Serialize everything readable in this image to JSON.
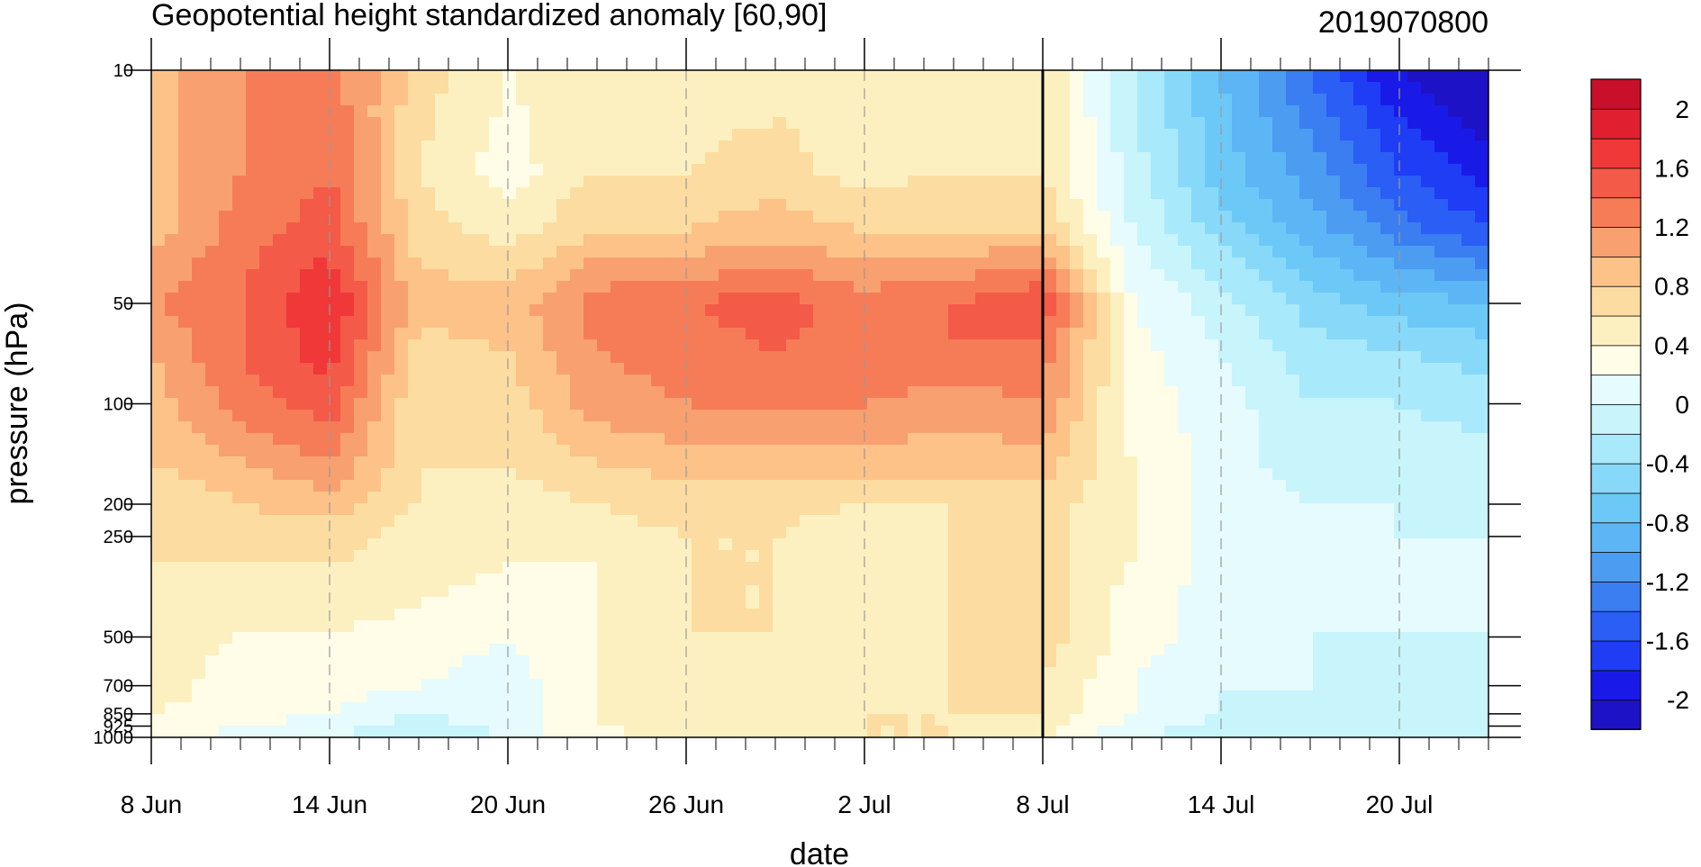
{
  "chart_data": {
    "type": "heatmap",
    "subtype": "filled-contour",
    "title": "Geopotential height standardized anomaly [60,90]",
    "date_label": "2019070800",
    "xlabel": "date",
    "ylabel": "pressure (hPa)",
    "x_range": [
      "2019-06-08",
      "2019-07-23"
    ],
    "y_range": [
      1000,
      10
    ],
    "y_scale": "log",
    "x_ticks": [
      {
        "label": "8 Jun",
        "date": "2019-06-08"
      },
      {
        "label": "14 Jun",
        "date": "2019-06-14"
      },
      {
        "label": "20 Jun",
        "date": "2019-06-20"
      },
      {
        "label": "26 Jun",
        "date": "2019-06-26"
      },
      {
        "label": "2 Jul",
        "date": "2019-07-02"
      },
      {
        "label": "8 Jul",
        "date": "2019-07-08"
      },
      {
        "label": "14 Jul",
        "date": "2019-07-14"
      },
      {
        "label": "20 Jul",
        "date": "2019-07-20"
      }
    ],
    "y_ticks": [
      {
        "label": "10",
        "value": 10
      },
      {
        "label": "50",
        "value": 50
      },
      {
        "label": "100",
        "value": 100
      },
      {
        "label": "200",
        "value": 200
      },
      {
        "label": "250",
        "value": 250
      },
      {
        "label": "500",
        "value": 500
      },
      {
        "label": "700",
        "value": 700
      },
      {
        "label": "850",
        "value": 850
      },
      {
        "label": "925",
        "value": 925
      },
      {
        "label": "1000",
        "value": 1000
      }
    ],
    "current_date_line": "2019-07-08",
    "grid": "vertical dashed lines at labelled dates",
    "colorbar": {
      "placement": "right",
      "levels": [
        -2.2,
        -2.0,
        -1.8,
        -1.6,
        -1.4,
        -1.2,
        -1.0,
        -0.8,
        -0.6,
        -0.4,
        -0.2,
        0,
        0.2,
        0.4,
        0.6,
        0.8,
        1.0,
        1.2,
        1.4,
        1.6,
        1.8,
        2.0,
        2.2
      ],
      "colors": [
        "#1e12c6",
        "#1a1ae8",
        "#1e3df5",
        "#2a5ef5",
        "#3a7ef2",
        "#4c9cf2",
        "#5cb6f5",
        "#6cc9f7",
        "#88d9f9",
        "#a8e9fb",
        "#c8f4fc",
        "#e6fbfd",
        "#fffce8",
        "#fdf0c0",
        "#fcdca0",
        "#fcc288",
        "#f8a070",
        "#f67c58",
        "#f45a48",
        "#f03838",
        "#e02030",
        "#c8102a"
      ],
      "labels": [
        {
          "label": "2",
          "value": 2.0
        },
        {
          "label": "1.6",
          "value": 1.6
        },
        {
          "label": "1.2",
          "value": 1.2
        },
        {
          "label": "0.8",
          "value": 0.8
        },
        {
          "label": "0.4",
          "value": 0.4
        },
        {
          "label": "0",
          "value": 0.0
        },
        {
          "label": "-0.4",
          "value": -0.4
        },
        {
          "label": "-0.8",
          "value": -0.8
        },
        {
          "label": "-1.2",
          "value": -1.2
        },
        {
          "label": "-1.6",
          "value": -1.6
        },
        {
          "label": "-2",
          "value": -2.0
        }
      ]
    },
    "field": {
      "pressure_levels": [
        10,
        20,
        30,
        50,
        70,
        100,
        150,
        200,
        250,
        300,
        400,
        500,
        700,
        850,
        925,
        1000
      ],
      "dates": [
        "2019-06-08",
        "2019-06-11",
        "2019-06-14",
        "2019-06-17",
        "2019-06-20",
        "2019-06-23",
        "2019-06-26",
        "2019-06-29",
        "2019-07-02",
        "2019-07-05",
        "2019-07-08",
        "2019-07-11",
        "2019-07-14",
        "2019-07-17",
        "2019-07-20",
        "2019-07-23"
      ],
      "values": [
        [
          0.9,
          1.2,
          1.3,
          0.7,
          0.4,
          0.6,
          0.5,
          0.5,
          0.5,
          0.5,
          0.6,
          -0.2,
          -0.8,
          -1.4,
          -2.0,
          -2.3
        ],
        [
          0.9,
          1.2,
          1.4,
          0.6,
          0.3,
          0.6,
          0.6,
          0.7,
          0.5,
          0.6,
          0.6,
          -0.1,
          -0.7,
          -1.1,
          -1.6,
          -1.9
        ],
        [
          0.9,
          1.3,
          1.5,
          0.7,
          0.5,
          0.8,
          0.8,
          0.9,
          0.8,
          0.8,
          0.8,
          0.0,
          -0.5,
          -0.9,
          -1.3,
          -1.6
        ],
        [
          1.2,
          1.4,
          1.8,
          0.9,
          0.9,
          1.3,
          1.4,
          1.5,
          1.3,
          1.4,
          1.6,
          0.2,
          -0.1,
          -0.5,
          -0.7,
          -0.8
        ],
        [
          1.0,
          1.4,
          1.7,
          0.7,
          0.8,
          1.2,
          1.3,
          1.4,
          1.3,
          1.4,
          1.3,
          0.3,
          0.0,
          -0.3,
          -0.4,
          -0.5
        ],
        [
          0.9,
          1.3,
          1.5,
          0.6,
          0.7,
          1.1,
          1.2,
          1.2,
          1.2,
          1.1,
          1.2,
          0.3,
          0.1,
          -0.2,
          -0.2,
          -0.3
        ],
        [
          0.8,
          1.0,
          1.2,
          0.6,
          0.6,
          0.8,
          0.9,
          0.9,
          0.9,
          0.9,
          0.9,
          0.4,
          0.1,
          -0.1,
          -0.1,
          -0.1
        ],
        [
          0.6,
          0.8,
          0.9,
          0.6,
          0.5,
          0.6,
          0.7,
          0.7,
          0.6,
          0.6,
          0.7,
          0.4,
          0.1,
          0.0,
          0.0,
          -0.1
        ],
        [
          0.6,
          0.7,
          0.7,
          0.5,
          0.4,
          0.5,
          0.6,
          0.6,
          0.4,
          0.6,
          0.7,
          0.4,
          0.1,
          0.0,
          0.0,
          0.0
        ],
        [
          0.6,
          0.6,
          0.6,
          0.5,
          0.4,
          0.4,
          0.6,
          0.6,
          0.4,
          0.6,
          0.7,
          0.4,
          0.1,
          0.0,
          0.0,
          0.0
        ],
        [
          0.5,
          0.5,
          0.5,
          0.4,
          0.3,
          0.4,
          0.6,
          0.6,
          0.4,
          0.6,
          0.7,
          0.3,
          0.1,
          0.0,
          0.0,
          0.0
        ],
        [
          0.5,
          0.4,
          0.4,
          0.3,
          0.2,
          0.4,
          0.6,
          0.6,
          0.4,
          0.6,
          0.7,
          0.3,
          0.1,
          0.0,
          0.0,
          0.0
        ],
        [
          0.5,
          0.3,
          0.3,
          0.2,
          0.1,
          0.4,
          0.5,
          0.5,
          0.5,
          0.6,
          0.6,
          0.2,
          0.0,
          0.0,
          -0.1,
          -0.1
        ],
        [
          0.4,
          0.3,
          0.2,
          0.0,
          0.1,
          0.4,
          0.5,
          0.4,
          0.6,
          0.6,
          0.6,
          0.2,
          0.0,
          -0.1,
          -0.1,
          -0.1
        ],
        [
          0.4,
          0.2,
          0.1,
          -0.1,
          0.1,
          0.4,
          0.4,
          0.4,
          0.6,
          0.6,
          0.5,
          0.1,
          -0.1,
          -0.1,
          -0.1,
          -0.1
        ],
        [
          0.3,
          0.1,
          0.0,
          -0.2,
          0.0,
          0.4,
          0.4,
          0.4,
          0.6,
          0.6,
          0.4,
          0.0,
          -0.1,
          -0.2,
          -0.1,
          -0.1
        ]
      ]
    }
  }
}
